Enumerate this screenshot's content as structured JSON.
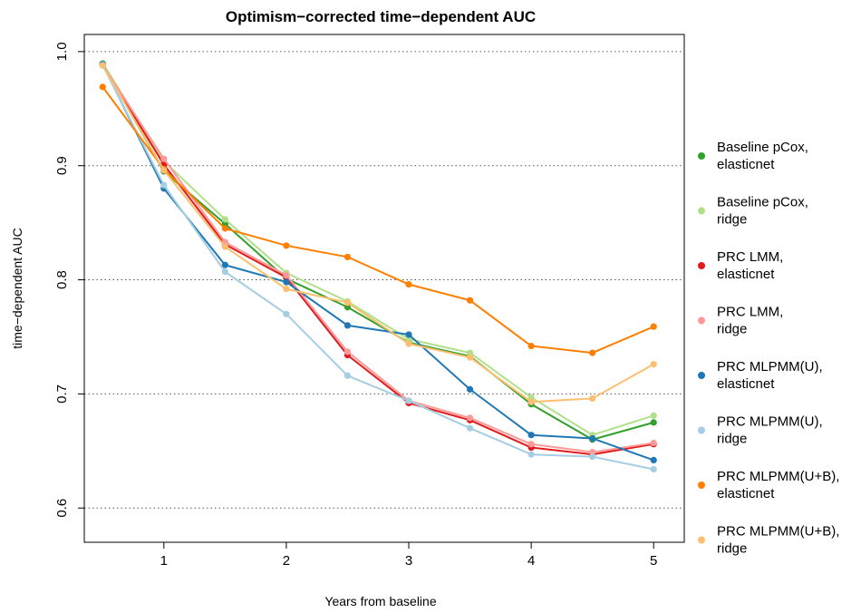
{
  "chart_data": {
    "type": "line",
    "title": "Optimism−corrected time−dependent AUC",
    "xlabel": "Years from baseline",
    "ylabel": "time−dependent AUC",
    "xlim": [
      0.35,
      5.25
    ],
    "ylim": [
      0.57,
      1.015
    ],
    "x_ticks": [
      1,
      2,
      3,
      4,
      5
    ],
    "x_tick_labels": [
      "1",
      "2",
      "3",
      "4",
      "5"
    ],
    "y_ticks": [
      0.6,
      0.7,
      0.8,
      0.9,
      1.0
    ],
    "y_tick_labels": [
      "0.6",
      "0.7",
      "0.8",
      "0.9",
      "1.0"
    ],
    "grid": "horizontal dotted",
    "legend_position": "right",
    "x": [
      0.5,
      1,
      1.5,
      2,
      2.5,
      3,
      3.5,
      4,
      4.5,
      5
    ],
    "series": [
      {
        "name": "Baseline pCox, elasticnet",
        "legend_lines": [
          "Baseline pCox,",
          "elasticnet"
        ],
        "color": "#33a02c",
        "values": [
          0.989,
          0.895,
          0.849,
          0.801,
          0.776,
          0.745,
          0.733,
          0.691,
          0.66,
          0.675
        ]
      },
      {
        "name": "Baseline pCox, ridge",
        "legend_lines": [
          "Baseline pCox,",
          "ridge"
        ],
        "color": "#b2df8a",
        "values": [
          0.99,
          0.904,
          0.853,
          0.806,
          0.781,
          0.748,
          0.736,
          0.697,
          0.664,
          0.681
        ]
      },
      {
        "name": "PRC LMM, elasticnet",
        "legend_lines": [
          "PRC LMM,",
          "elasticnet"
        ],
        "color": "#e31a1c",
        "values": [
          0.988,
          0.901,
          0.831,
          0.802,
          0.734,
          0.692,
          0.677,
          0.653,
          0.647,
          0.656
        ]
      },
      {
        "name": "PRC LMM, ridge",
        "legend_lines": [
          "PRC LMM,",
          "ridge"
        ],
        "color": "#fb9a99",
        "values": [
          0.988,
          0.906,
          0.833,
          0.804,
          0.737,
          0.694,
          0.679,
          0.656,
          0.649,
          0.657
        ]
      },
      {
        "name": "PRC MLPMM(U), elasticnet",
        "legend_lines": [
          "PRC MLPMM(U),",
          "elasticnet"
        ],
        "color": "#1f78b4",
        "values": [
          0.989,
          0.88,
          0.813,
          0.798,
          0.76,
          0.752,
          0.704,
          0.664,
          0.661,
          0.642
        ]
      },
      {
        "name": "PRC MLPMM(U), ridge",
        "legend_lines": [
          "PRC MLPMM(U),",
          "ridge"
        ],
        "color": "#a6cee3",
        "values": [
          0.988,
          0.883,
          0.807,
          0.77,
          0.716,
          0.694,
          0.67,
          0.647,
          0.645,
          0.634
        ]
      },
      {
        "name": "PRC MLPMM(U+B), elasticnet",
        "legend_lines": [
          "PRC MLPMM(U+B),",
          "elasticnet"
        ],
        "color": "#ff7f00",
        "values": [
          0.969,
          0.897,
          0.845,
          0.83,
          0.82,
          0.796,
          0.782,
          0.742,
          0.736,
          0.759
        ]
      },
      {
        "name": "PRC MLPMM(U+B), ridge",
        "legend_lines": [
          "PRC MLPMM(U+B),",
          "ridge"
        ],
        "color": "#fdbf6f",
        "values": [
          0.988,
          0.896,
          0.829,
          0.792,
          0.78,
          0.744,
          0.732,
          0.693,
          0.696,
          0.726
        ]
      }
    ]
  }
}
